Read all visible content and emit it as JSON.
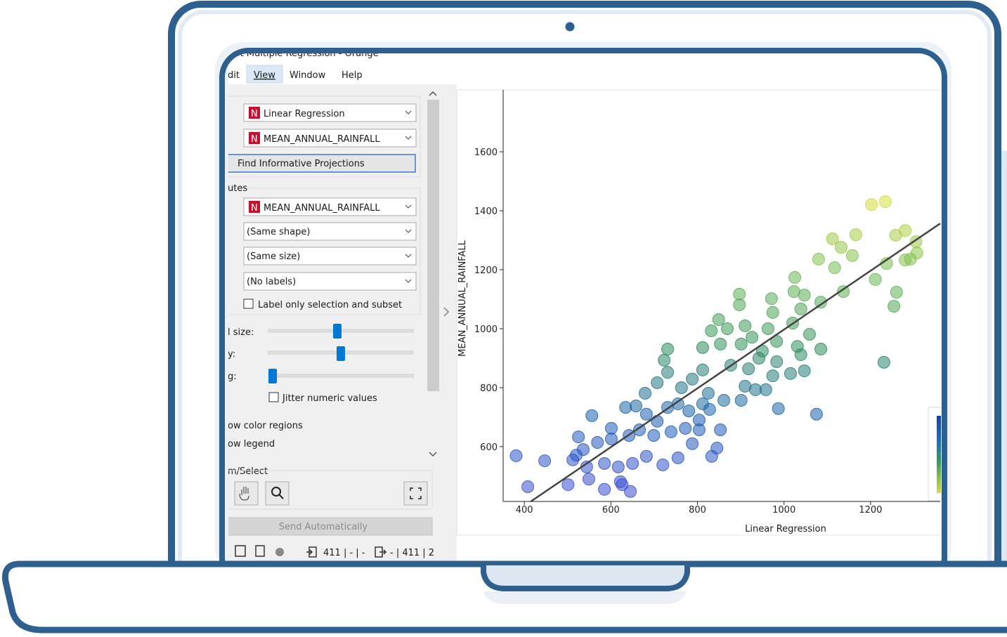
{
  "window": {
    "title": "lot Multiple Regression - Orange"
  },
  "menu": [
    "dit",
    "View",
    "Window",
    "Help"
  ],
  "controls": {
    "badge": "N",
    "x_axis": "Linear Regression",
    "y_axis": "MEAN_ANNUAL_RAINFALL",
    "find_button": "Find Informative Projections",
    "attributes_label": "utes",
    "color": "MEAN_ANNUAL_RAINFALL",
    "shape": "(Same shape)",
    "size": "(Same size)",
    "label": "(No labels)",
    "label_only": "Label only selection and subset",
    "symbol_size": "l size:",
    "opacity": "y:",
    "jittering": "g:",
    "jitter": "Jitter numeric values",
    "color_regions": "ow color regions",
    "legend": "ow legend",
    "zoom_select": "m/Select",
    "send": "Send Automatically"
  },
  "status": {
    "input": "411 | - | -",
    "output": "- | 411 | 2"
  },
  "chart_data": {
    "type": "scatter",
    "x_label": "Linear Regression",
    "y_label": "MEAN_ANNUAL_RAINFALL",
    "xlim": [
      351,
      1361
    ],
    "ylim": [
      414,
      1810
    ],
    "xticks": [
      400,
      600,
      800,
      1000,
      1200
    ],
    "yticks": [
      600,
      800,
      1000,
      1200,
      1400,
      1600
    ],
    "color_scale": [
      "#3e4fd0",
      "#1a5fb4",
      "#2f8f5a",
      "#6fbb55",
      "#d6dc3a"
    ],
    "x": [
      381,
      408,
      447,
      501,
      549,
      585,
      622,
      645,
      626,
      556,
      525,
      512,
      536,
      569,
      601,
      634,
      658,
      682,
      707,
      731,
      755,
      780,
      804,
      812,
      828,
      853,
      845,
      833,
      788,
      755,
      720,
      682,
      650,
      617,
      585,
      544,
      520,
      601,
      642,
      666,
      699,
      739,
      772,
      804,
      987,
      1075,
      679,
      707,
      731,
      723,
      731,
      763,
      788,
      812,
      812,
      832,
      853,
      869,
      877,
      901,
      910,
      918,
      926,
      942,
      958,
      934,
      974,
      983,
      849,
      897,
      897,
      910,
      950,
      963,
      971,
      974,
      983,
      1020,
      1023,
      1025,
      1039,
      1047,
      1059,
      1031,
      1039,
      1047,
      1015,
      1085,
      1085,
      825,
      861,
      901,
      1080,
      1117,
      1132,
      1158,
      1166,
      1112,
      1137,
      1202,
      1234,
      1258,
      1280,
      1305,
      1307,
      1292,
      1280,
      1237,
      1211,
      1260,
      1254,
      1231
    ],
    "y": [
      569,
      464,
      552,
      471,
      490,
      455,
      481,
      448,
      471,
      705,
      633,
      555,
      590,
      614,
      662,
      733,
      738,
      710,
      686,
      733,
      745,
      721,
      690,
      745,
      726,
      657,
      595,
      567,
      610,
      562,
      538,
      567,
      543,
      531,
      543,
      531,
      571,
      626,
      638,
      657,
      638,
      650,
      662,
      657,
      729,
      710,
      781,
      817,
      852,
      893,
      931,
      800,
      829,
      860,
      936,
      993,
      948,
      1000,
      876,
      948,
      805,
      864,
      971,
      900,
      793,
      793,
      840,
      888,
      1031,
      1081,
      1117,
      1010,
      924,
      1000,
      1102,
      1055,
      957,
      1019,
      1126,
      1174,
      1067,
      1114,
      981,
      940,
      912,
      857,
      848,
      931,
      1090,
      781,
      757,
      757,
      1236,
      1207,
      1276,
      1248,
      1319,
      1305,
      1126,
      1421,
      1431,
      1317,
      1333,
      1295,
      1257,
      1236,
      1233,
      1221,
      1167,
      1124,
      1076,
      886
    ],
    "regression_line": {
      "x": [
        415,
        1361
      ],
      "y": [
        414,
        1357
      ]
    }
  }
}
